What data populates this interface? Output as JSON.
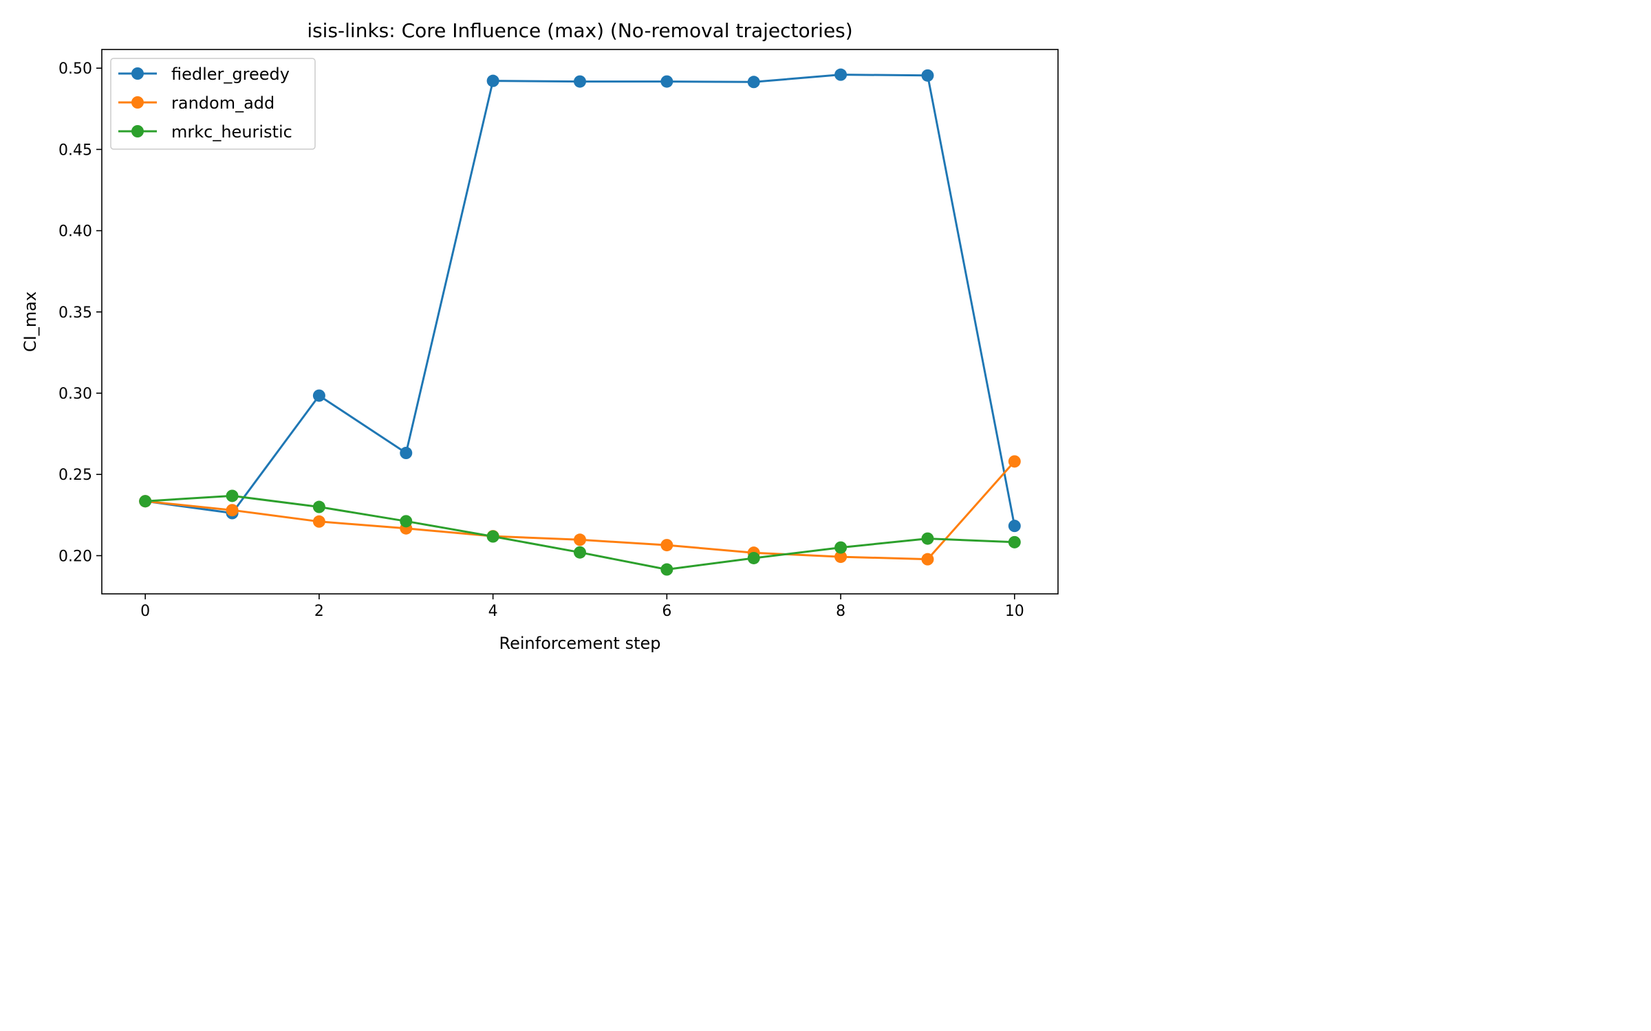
{
  "chart_data": {
    "type": "line",
    "title": "isis-links: Core Influence (max) (No-removal trajectories)",
    "xlabel": "Reinforcement step",
    "ylabel": "CI_max",
    "xlim": [
      -0.5,
      10.5
    ],
    "ylim": [
      0.1765,
      0.5115
    ],
    "xticks": [
      0,
      2,
      4,
      6,
      8,
      10
    ],
    "yticks": [
      0.2,
      0.25,
      0.3,
      0.35,
      0.4,
      0.45,
      0.5
    ],
    "ytick_labels": [
      "0.20",
      "0.25",
      "0.30",
      "0.35",
      "0.40",
      "0.45",
      "0.50"
    ],
    "grid": false,
    "legend_position": "upper-left",
    "x": [
      0,
      1,
      2,
      3,
      4,
      5,
      6,
      7,
      8,
      9,
      10
    ],
    "series": [
      {
        "name": "fiedler_greedy",
        "color": "#1f77b4",
        "values": [
          0.2335,
          0.2262,
          0.2985,
          0.2632,
          0.4922,
          0.4918,
          0.4918,
          0.4915,
          0.496,
          0.4955,
          0.2183
        ]
      },
      {
        "name": "random_add",
        "color": "#ff7f0e",
        "values": [
          0.2335,
          0.228,
          0.221,
          0.2168,
          0.212,
          0.2098,
          0.2065,
          0.2018,
          0.1993,
          0.1978,
          0.258
        ]
      },
      {
        "name": "mrkc_heuristic",
        "color": "#2ca02c",
        "values": [
          0.2335,
          0.2368,
          0.23,
          0.2212,
          0.2118,
          0.202,
          0.1915,
          0.1985,
          0.205,
          0.2105,
          0.2083
        ]
      }
    ]
  }
}
